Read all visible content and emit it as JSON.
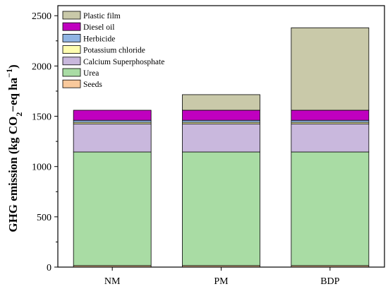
{
  "chart_data": {
    "type": "bar",
    "stacked": true,
    "categories": [
      "NM",
      "PM",
      "BDP"
    ],
    "ylabel": {
      "main": "GHG emission (kg CO",
      "sub": "2",
      "mid": "−eq ha",
      "sup": "−1",
      "end": ")"
    },
    "ylim": [
      0,
      2600
    ],
    "yticks": [
      0,
      500,
      1000,
      1500,
      2000,
      2500
    ],
    "legend_position": "top-left",
    "grid": false,
    "series": [
      {
        "name": "Seeds",
        "color": "#f9c99c",
        "values": [
          15,
          15,
          15
        ]
      },
      {
        "name": "Urea",
        "color": "#a9dca4",
        "values": [
          1130,
          1130,
          1130
        ]
      },
      {
        "name": "Calcium Superphosphate",
        "color": "#c9b8dd",
        "values": [
          280,
          280,
          280
        ]
      },
      {
        "name": "Potassium chloride",
        "color": "#fefdb0",
        "values": [
          15,
          15,
          15
        ]
      },
      {
        "name": "Herbicide",
        "color": "#8fb4e3",
        "values": [
          20,
          20,
          20
        ]
      },
      {
        "name": "Diesel oil",
        "color": "#c000bf",
        "values": [
          100,
          100,
          100
        ]
      },
      {
        "name": "Plastic film",
        "color": "#c9c9a9",
        "values": [
          0,
          155,
          820
        ]
      }
    ]
  }
}
